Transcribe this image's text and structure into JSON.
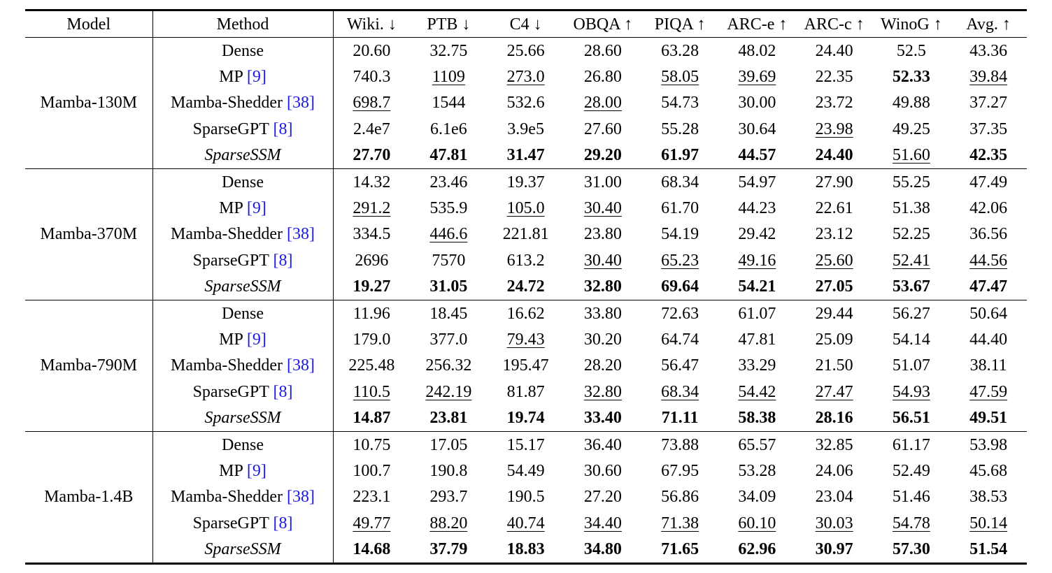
{
  "headers": {
    "model": "Model",
    "method": "Method",
    "metrics": [
      "Wiki. ↓",
      "PTB ↓",
      "C4 ↓",
      "OBQA ↑",
      "PIQA ↑",
      "ARC-e ↑",
      "ARC-c ↑",
      "WinoG ↑",
      "Avg. ↑"
    ]
  },
  "groups": [
    {
      "model": "Mamba-130M",
      "rows": [
        {
          "method": "Dense",
          "ref": "",
          "values": [
            "20.60",
            "32.75",
            "25.66",
            "28.60",
            "63.28",
            "48.02",
            "24.40",
            "52.5",
            "43.36"
          ],
          "bold": [],
          "underline": []
        },
        {
          "method": "MP",
          "ref": "[9]",
          "values": [
            "740.3",
            "1109",
            "273.0",
            "26.80",
            "58.05",
            "39.69",
            "22.35",
            "52.33",
            "39.84"
          ],
          "bold": [
            7
          ],
          "underline": [
            1,
            2,
            4,
            5,
            8
          ]
        },
        {
          "method": "Mamba-Shedder",
          "ref": "[38]",
          "values": [
            "698.7",
            "1544",
            "532.6",
            "28.00",
            "54.73",
            "30.00",
            "23.72",
            "49.88",
            "37.27"
          ],
          "bold": [],
          "underline": [
            0,
            3
          ]
        },
        {
          "method": "SparseGPT",
          "ref": "[8]",
          "values": [
            "2.4e7",
            "6.1e6",
            "3.9e5",
            "27.60",
            "55.28",
            "30.64",
            "23.98",
            "49.25",
            "37.35"
          ],
          "bold": [],
          "underline": [
            6
          ]
        },
        {
          "method": "SparseSSM",
          "ref": "",
          "italic": true,
          "values": [
            "27.70",
            "47.81",
            "31.47",
            "29.20",
            "61.97",
            "44.57",
            "24.40",
            "51.60",
            "42.35"
          ],
          "bold": [
            0,
            1,
            2,
            3,
            4,
            5,
            6,
            8
          ],
          "underline": [
            7
          ]
        }
      ]
    },
    {
      "model": "Mamba-370M",
      "rows": [
        {
          "method": "Dense",
          "ref": "",
          "values": [
            "14.32",
            "23.46",
            "19.37",
            "31.00",
            "68.34",
            "54.97",
            "27.90",
            "55.25",
            "47.49"
          ],
          "bold": [],
          "underline": []
        },
        {
          "method": "MP",
          "ref": "[9]",
          "values": [
            "291.2",
            "535.9",
            "105.0",
            "30.40",
            "61.70",
            "44.23",
            "22.61",
            "51.38",
            "42.06"
          ],
          "bold": [],
          "underline": [
            0,
            2,
            3
          ]
        },
        {
          "method": "Mamba-Shedder",
          "ref": "[38]",
          "values": [
            "334.5",
            "446.6",
            "221.81",
            "23.80",
            "54.19",
            "29.42",
            "23.12",
            "52.25",
            "36.56"
          ],
          "bold": [],
          "underline": [
            1
          ]
        },
        {
          "method": "SparseGPT",
          "ref": "[8]",
          "values": [
            "2696",
            "7570",
            "613.2",
            "30.40",
            "65.23",
            "49.16",
            "25.60",
            "52.41",
            "44.56"
          ],
          "bold": [],
          "underline": [
            3,
            4,
            5,
            6,
            7,
            8
          ]
        },
        {
          "method": "SparseSSM",
          "ref": "",
          "italic": true,
          "values": [
            "19.27",
            "31.05",
            "24.72",
            "32.80",
            "69.64",
            "54.21",
            "27.05",
            "53.67",
            "47.47"
          ],
          "bold": [
            0,
            1,
            2,
            3,
            4,
            5,
            6,
            7,
            8
          ],
          "underline": []
        }
      ]
    },
    {
      "model": "Mamba-790M",
      "rows": [
        {
          "method": "Dense",
          "ref": "",
          "values": [
            "11.96",
            "18.45",
            "16.62",
            "33.80",
            "72.63",
            "61.07",
            "29.44",
            "56.27",
            "50.64"
          ],
          "bold": [],
          "underline": []
        },
        {
          "method": "MP",
          "ref": "[9]",
          "values": [
            "179.0",
            "377.0",
            "79.43",
            "30.20",
            "64.74",
            "47.81",
            "25.09",
            "54.14",
            "44.40"
          ],
          "bold": [],
          "underline": [
            2
          ]
        },
        {
          "method": "Mamba-Shedder",
          "ref": "[38]",
          "values": [
            "225.48",
            "256.32",
            "195.47",
            "28.20",
            "56.47",
            "33.29",
            "21.50",
            "51.07",
            "38.11"
          ],
          "bold": [],
          "underline": []
        },
        {
          "method": "SparseGPT",
          "ref": "[8]",
          "values": [
            "110.5",
            "242.19",
            "81.87",
            "32.80",
            "68.34",
            "54.42",
            "27.47",
            "54.93",
            "47.59"
          ],
          "bold": [],
          "underline": [
            0,
            1,
            3,
            4,
            5,
            6,
            7,
            8
          ]
        },
        {
          "method": "SparseSSM",
          "ref": "",
          "italic": true,
          "values": [
            "14.87",
            "23.81",
            "19.74",
            "33.40",
            "71.11",
            "58.38",
            "28.16",
            "56.51",
            "49.51"
          ],
          "bold": [
            0,
            1,
            2,
            3,
            4,
            5,
            6,
            7,
            8
          ],
          "underline": []
        }
      ]
    },
    {
      "model": "Mamba-1.4B",
      "rows": [
        {
          "method": "Dense",
          "ref": "",
          "values": [
            "10.75",
            "17.05",
            "15.17",
            "36.40",
            "73.88",
            "65.57",
            "32.85",
            "61.17",
            "53.98"
          ],
          "bold": [],
          "underline": []
        },
        {
          "method": "MP",
          "ref": "[9]",
          "values": [
            "100.7",
            "190.8",
            "54.49",
            "30.60",
            "67.95",
            "53.28",
            "24.06",
            "52.49",
            "45.68"
          ],
          "bold": [],
          "underline": []
        },
        {
          "method": "Mamba-Shedder",
          "ref": "[38]",
          "values": [
            "223.1",
            "293.7",
            "190.5",
            "27.20",
            "56.86",
            "34.09",
            "23.04",
            "51.46",
            "38.53"
          ],
          "bold": [],
          "underline": []
        },
        {
          "method": "SparseGPT",
          "ref": "[8]",
          "values": [
            "49.77",
            "88.20",
            "40.74",
            "34.40",
            "71.38",
            "60.10",
            "30.03",
            "54.78",
            "50.14"
          ],
          "bold": [],
          "underline": [
            0,
            1,
            2,
            3,
            4,
            5,
            6,
            7,
            8
          ]
        },
        {
          "method": "SparseSSM",
          "ref": "",
          "italic": true,
          "values": [
            "14.68",
            "37.79",
            "18.83",
            "34.80",
            "71.65",
            "62.96",
            "30.97",
            "57.30",
            "51.54"
          ],
          "bold": [
            0,
            1,
            2,
            3,
            4,
            5,
            6,
            7,
            8
          ],
          "underline": []
        }
      ]
    }
  ]
}
